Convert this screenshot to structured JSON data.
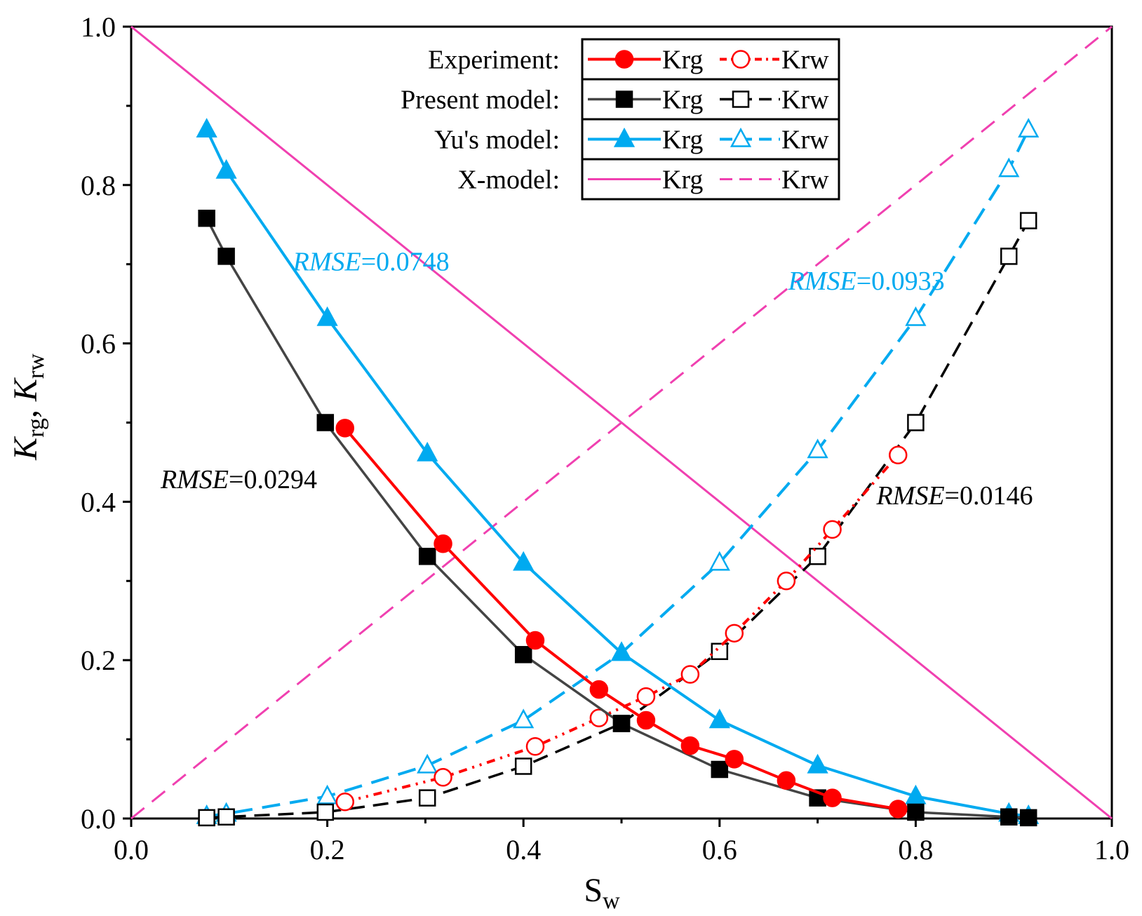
{
  "chart_data": {
    "type": "line",
    "xlabel": {
      "main": "S",
      "sub": "w"
    },
    "ylabel": {
      "k1": "K",
      "sub1": "rg",
      "sep": ", ",
      "k2": "K",
      "sub2": "rw"
    },
    "xlim": [
      0.0,
      1.0
    ],
    "ylim": [
      0.0,
      1.0
    ],
    "xticks": [
      "0.0",
      "0.2",
      "0.4",
      "0.6",
      "0.8",
      "1.0"
    ],
    "yticks": [
      "0.0",
      "0.2",
      "0.4",
      "0.6",
      "0.8",
      "1.0"
    ],
    "grid": false,
    "legend_position": "top-right",
    "legend_rows": [
      {
        "label": "Experiment:",
        "krg": "Krg",
        "krw": "Krw"
      },
      {
        "label": "Present model:",
        "krg": "Krg",
        "krw": "Krw"
      },
      {
        "label": "Yu's model:",
        "krg": "Krg",
        "krw": "Krw"
      },
      {
        "label": "X-model:",
        "krg": "Krg",
        "krw": "Krw"
      }
    ],
    "colors": {
      "experiment": "#ff0000",
      "present_krg": "#444444",
      "present_krw": "#000000",
      "yu": "#00aaf0",
      "x_model": "#f040b0"
    },
    "series": [
      {
        "key": "exp_krg",
        "row": 0,
        "kind": "krg",
        "x": [
          0.218,
          0.318,
          0.412,
          0.477,
          0.525,
          0.57,
          0.615,
          0.668,
          0.715,
          0.782
        ],
        "y": [
          0.493,
          0.347,
          0.225,
          0.163,
          0.124,
          0.092,
          0.075,
          0.048,
          0.026,
          0.012
        ]
      },
      {
        "key": "exp_krw",
        "row": 0,
        "kind": "krw",
        "x": [
          0.218,
          0.318,
          0.412,
          0.477,
          0.525,
          0.57,
          0.615,
          0.668,
          0.715,
          0.782
        ],
        "y": [
          0.021,
          0.052,
          0.091,
          0.127,
          0.154,
          0.182,
          0.234,
          0.3,
          0.365,
          0.459
        ]
      },
      {
        "key": "present_krg",
        "row": 1,
        "kind": "krg",
        "x": [
          0.077,
          0.097,
          0.198,
          0.302,
          0.4,
          0.5,
          0.6,
          0.7,
          0.8,
          0.895,
          0.915
        ],
        "y": [
          0.758,
          0.71,
          0.5,
          0.331,
          0.207,
          0.12,
          0.062,
          0.026,
          0.008,
          0.002,
          0.001
        ]
      },
      {
        "key": "present_krw",
        "row": 1,
        "kind": "krw",
        "x": [
          0.077,
          0.097,
          0.198,
          0.302,
          0.4,
          0.5,
          0.6,
          0.7,
          0.8,
          0.895,
          0.915
        ],
        "y": [
          0.001,
          0.002,
          0.008,
          0.026,
          0.066,
          0.12,
          0.211,
          0.331,
          0.5,
          0.71,
          0.755
        ]
      },
      {
        "key": "yu_krg",
        "row": 2,
        "kind": "krg",
        "x": [
          0.077,
          0.097,
          0.2,
          0.302,
          0.4,
          0.5,
          0.6,
          0.7,
          0.8,
          0.895,
          0.915
        ],
        "y": [
          0.87,
          0.818,
          0.632,
          0.461,
          0.323,
          0.209,
          0.124,
          0.067,
          0.028,
          0.006,
          0.003
        ]
      },
      {
        "key": "yu_krw",
        "row": 2,
        "kind": "krw",
        "x": [
          0.077,
          0.097,
          0.2,
          0.302,
          0.4,
          0.5,
          0.6,
          0.7,
          0.8,
          0.895,
          0.915
        ],
        "y": [
          0.003,
          0.006,
          0.028,
          0.067,
          0.124,
          0.209,
          0.323,
          0.465,
          0.632,
          0.82,
          0.87
        ]
      },
      {
        "key": "x_krg",
        "row": 3,
        "kind": "krg",
        "x": [
          0,
          1
        ],
        "y": [
          1,
          0
        ]
      },
      {
        "key": "x_krw",
        "row": 3,
        "kind": "krw",
        "x": [
          0,
          1
        ],
        "y": [
          0,
          1
        ]
      }
    ],
    "annotations": [
      {
        "key": "rmse_yu_krg",
        "italic": "RMSE",
        "value": "=0.0748",
        "color": "#00aaf0",
        "x": 0.165,
        "y": 0.692
      },
      {
        "key": "rmse_yu_krw",
        "italic": "RMSE",
        "value": "=0.0933",
        "color": "#00aaf0",
        "x": 0.67,
        "y": 0.668
      },
      {
        "key": "rmse_present_krg",
        "italic": "RMSE",
        "value": "=0.0294",
        "color": "#000000",
        "x": 0.03,
        "y": 0.417
      },
      {
        "key": "rmse_present_krw",
        "italic": "RMSE",
        "value": "=0.0146",
        "color": "#000000",
        "x": 0.76,
        "y": 0.397
      }
    ]
  }
}
